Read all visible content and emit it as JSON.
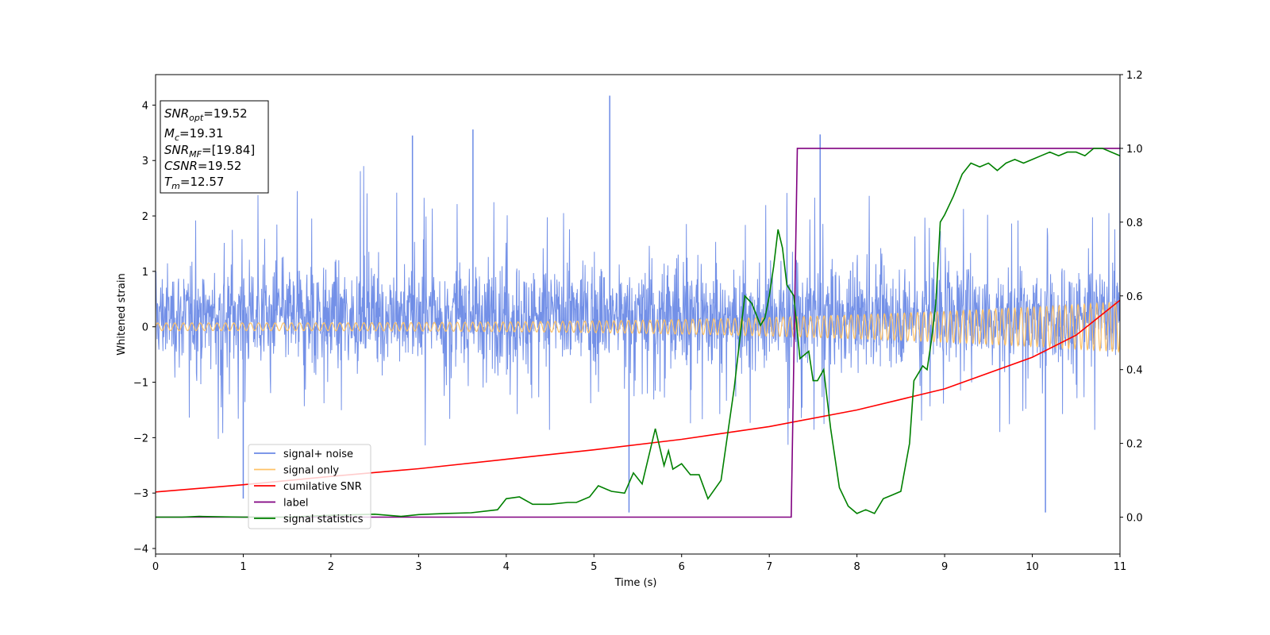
{
  "chart_data": {
    "type": "line",
    "xlabel": "Time (s)",
    "ylabel_left": "Whitened strain",
    "xlim": [
      0,
      11
    ],
    "ylim_left": [
      -4.1,
      4.55
    ],
    "ylim_right": [
      -0.1,
      1.2
    ],
    "xticks": [
      "0",
      "1",
      "2",
      "3",
      "4",
      "5",
      "6",
      "7",
      "8",
      "9",
      "10",
      "11"
    ],
    "yticks_left": [
      "−4",
      "−3",
      "−2",
      "−1",
      "0",
      "1",
      "2",
      "3",
      "4"
    ],
    "yticks_right": [
      "0.0",
      "0.2",
      "0.4",
      "0.6",
      "0.8",
      "1.0",
      "1.2"
    ],
    "grid": false,
    "legend_placement": "lower-left",
    "legend": [
      {
        "label": "signal+ noise",
        "color": "#6b8ae6"
      },
      {
        "label": "signal only",
        "color": "#ffc266"
      },
      {
        "label": "cumilative SNR",
        "color": "#ff0000"
      },
      {
        "label": "label",
        "color": "#800080"
      },
      {
        "label": "signal statistics",
        "color": "#008000"
      }
    ],
    "annotation": [
      {
        "base": "SNR",
        "sub": "opt",
        "rest": "=19.52"
      },
      {
        "base": "M",
        "sub": "c",
        "rest": "=19.31"
      },
      {
        "base": "SNR",
        "sub": "MF",
        "rest": "=[19.84]"
      },
      {
        "base": "CSNR",
        "sub": "",
        "rest": "=19.52"
      },
      {
        "base": "T",
        "sub": "m",
        "rest": "=12.57"
      }
    ],
    "series": [
      {
        "name": "signal+ noise",
        "axis": "left",
        "color": "#6b8ae6",
        "note_style": "dense noise",
        "amplitude_envelope": {
          "typical_low": -1.6,
          "typical_high": 2.0,
          "max": 4.17,
          "min": -3.35
        },
        "notable_points": [
          [
            5.18,
            4.17
          ],
          [
            7.58,
            3.47
          ],
          [
            2.93,
            3.45
          ],
          [
            3.62,
            3.56
          ],
          [
            11.0,
            3.3
          ],
          [
            10.15,
            -3.35
          ],
          [
            5.4,
            -3.35
          ],
          [
            1.0,
            -3.1
          ]
        ]
      },
      {
        "name": "signal only",
        "axis": "left",
        "color": "#ffc266",
        "note_style": "chirp, amplitude growing from ~0.07 at t=0 to ~0.45 at t=11"
      },
      {
        "name": "cumilative SNR",
        "axis": "left",
        "color": "#ff0000",
        "x": [
          0,
          1,
          2,
          3,
          4,
          5,
          6,
          7,
          8,
          9,
          10,
          10.5,
          11
        ],
        "y": [
          -2.98,
          -2.85,
          -2.7,
          -2.56,
          -2.39,
          -2.22,
          -2.03,
          -1.8,
          -1.5,
          -1.12,
          -0.55,
          -0.15,
          0.48
        ]
      },
      {
        "name": "label",
        "axis": "right",
        "color": "#800080",
        "x": [
          0,
          7.25,
          7.32,
          11.0
        ],
        "y": [
          0.0,
          0.0,
          1.0,
          1.0
        ]
      },
      {
        "name": "signal statistics",
        "axis": "right",
        "color": "#008000",
        "x": [
          0.0,
          0.3,
          0.5,
          1.0,
          1.5,
          2.0,
          2.5,
          2.8,
          3.0,
          3.3,
          3.6,
          3.9,
          4.0,
          4.15,
          4.3,
          4.5,
          4.7,
          4.8,
          4.95,
          5.05,
          5.2,
          5.35,
          5.45,
          5.55,
          5.7,
          5.8,
          5.85,
          5.9,
          6.0,
          6.1,
          6.2,
          6.3,
          6.45,
          6.6,
          6.72,
          6.8,
          6.9,
          6.95,
          7.0,
          7.05,
          7.1,
          7.15,
          7.2,
          7.28,
          7.35,
          7.45,
          7.5,
          7.55,
          7.62,
          7.7,
          7.8,
          7.9,
          8.0,
          8.1,
          8.2,
          8.3,
          8.4,
          8.5,
          8.6,
          8.65,
          8.7,
          8.75,
          8.8,
          8.85,
          8.9,
          8.95,
          9.0,
          9.1,
          9.2,
          9.3,
          9.4,
          9.5,
          9.6,
          9.7,
          9.8,
          9.9,
          10.0,
          10.1,
          10.2,
          10.3,
          10.4,
          10.5,
          10.6,
          10.7,
          10.8,
          10.9,
          11.0
        ],
        "y": [
          0.0,
          0.0,
          0.002,
          0.0,
          0.0,
          0.005,
          0.008,
          0.002,
          0.007,
          0.01,
          0.012,
          0.02,
          0.05,
          0.055,
          0.035,
          0.035,
          0.04,
          0.04,
          0.055,
          0.085,
          0.07,
          0.065,
          0.12,
          0.09,
          0.24,
          0.14,
          0.18,
          0.13,
          0.145,
          0.115,
          0.115,
          0.05,
          0.1,
          0.35,
          0.6,
          0.58,
          0.52,
          0.54,
          0.6,
          0.68,
          0.78,
          0.73,
          0.63,
          0.6,
          0.43,
          0.45,
          0.37,
          0.37,
          0.4,
          0.24,
          0.08,
          0.03,
          0.01,
          0.02,
          0.01,
          0.05,
          0.06,
          0.07,
          0.2,
          0.37,
          0.39,
          0.41,
          0.4,
          0.48,
          0.58,
          0.8,
          0.82,
          0.87,
          0.93,
          0.96,
          0.95,
          0.96,
          0.94,
          0.96,
          0.97,
          0.96,
          0.97,
          0.98,
          0.99,
          0.98,
          0.99,
          0.99,
          0.98,
          1.0,
          1.0,
          0.99,
          0.98
        ]
      }
    ]
  }
}
